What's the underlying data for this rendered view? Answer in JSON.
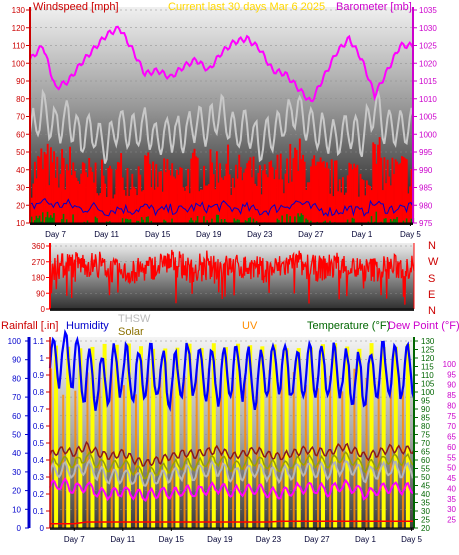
{
  "colors": {
    "windspeed": "#cc0000",
    "title": "#ffd700",
    "barometer": "#cc00cc",
    "direction": "#ff0000",
    "rainfall": "#cc0000",
    "humidity": "#0000cc",
    "thsw": "#bbbbbb",
    "solar": "#8b7000",
    "uv": "#ff8c00",
    "temperature": "#006600",
    "dewpoint": "#cc00cc",
    "rain_axis": "#0000cc",
    "temp_axis": "#006600"
  },
  "header": {
    "windspeed_label": "Windspeed [mph]",
    "title": "Current last 30 days Mar 6 2025",
    "barometer_label": "Barometer [mb]"
  },
  "panel2": {
    "compass": [
      "N",
      "W",
      "S",
      "E",
      "N"
    ]
  },
  "panel3": {
    "rainfall_label": "Rainfall [.in]",
    "humidity_label": "Humidity",
    "thsw_label": "THSW",
    "solar_label": "Solar",
    "uv_label": "UV",
    "temperature_label": "Temperature (°F)",
    "dewpoint_label": "Dew Point (°F)"
  },
  "chart_data": [
    {
      "type": "line",
      "title": "Current last 30 days Mar 6 2025",
      "x_ticks": [
        "Day 7",
        "Day 11",
        "Day 15",
        "Day 19",
        "Day 23",
        "Day 27",
        "Day 1",
        "Day 5"
      ],
      "ylabel": "Windspeed [mph]",
      "ylim": [
        10,
        130
      ],
      "y_ticks": [
        10,
        20,
        30,
        40,
        50,
        60,
        70,
        80,
        90,
        100,
        110,
        120,
        130
      ],
      "y2label": "Barometer [mb]",
      "y2lim": [
        975,
        1035
      ],
      "y2_ticks": [
        975,
        980,
        985,
        990,
        995,
        1000,
        1005,
        1010,
        1015,
        1020,
        1025,
        1030,
        1035
      ],
      "series": [
        {
          "name": "Barometer [mb]",
          "axis": "right",
          "x_day": [
            0,
            1,
            2,
            3,
            4,
            5,
            6,
            7,
            8,
            9,
            10,
            11,
            12,
            13,
            14,
            15,
            16,
            17,
            18,
            19,
            20,
            21,
            22,
            23,
            24,
            25,
            26,
            27,
            28,
            29
          ],
          "values": [
            1021,
            1025,
            1013,
            1015,
            1020,
            1024,
            1028,
            1030,
            1024,
            1017,
            1018,
            1016,
            1019,
            1021,
            1018,
            1023,
            1026,
            1027,
            1024,
            1018,
            1017,
            1013,
            1009,
            1016,
            1023,
            1027,
            1021,
            1011,
            1018,
            1025
          ]
        },
        {
          "name": "Gust",
          "axis": "left",
          "x_day": [
            0,
            1,
            2,
            3,
            4,
            5,
            6,
            7,
            8,
            9,
            10,
            11,
            12,
            13,
            14,
            15,
            16,
            17,
            18,
            19,
            20,
            21,
            22,
            23,
            24,
            25,
            26,
            27,
            28,
            29
          ],
          "values": [
            58,
            72,
            62,
            68,
            56,
            60,
            52,
            64,
            58,
            62,
            54,
            60,
            56,
            66,
            62,
            72,
            58,
            64,
            52,
            60,
            66,
            72,
            62,
            58,
            56,
            62,
            54,
            76,
            60,
            62
          ]
        },
        {
          "name": "Windspeed",
          "axis": "left",
          "x_day": [
            0,
            1,
            2,
            3,
            4,
            5,
            6,
            7,
            8,
            9,
            10,
            11,
            12,
            13,
            14,
            15,
            16,
            17,
            18,
            19,
            20,
            21,
            22,
            23,
            24,
            25,
            26,
            27,
            28,
            29
          ],
          "values": [
            30,
            42,
            34,
            36,
            28,
            32,
            24,
            30,
            26,
            32,
            24,
            28,
            26,
            32,
            30,
            34,
            28,
            30,
            24,
            28,
            34,
            40,
            30,
            26,
            24,
            30,
            22,
            38,
            28,
            30
          ]
        }
      ]
    },
    {
      "type": "line",
      "ylabel": "Wind direction",
      "ylim": [
        0,
        360
      ],
      "y_ticks": [
        0,
        90,
        180,
        270,
        360
      ],
      "series": [
        {
          "name": "Wind direction",
          "x_day": [
            0,
            2,
            4,
            6,
            8,
            10,
            12,
            14,
            16,
            18,
            20,
            22,
            24,
            26,
            28,
            29
          ],
          "values": [
            230,
            260,
            250,
            200,
            230,
            270,
            210,
            240,
            240,
            220,
            260,
            230,
            250,
            220,
            240,
            240
          ]
        }
      ]
    },
    {
      "type": "line",
      "x_ticks": [
        "Day 7",
        "Day 11",
        "Day 15",
        "Day 19",
        "Day 23",
        "Day 27",
        "Day 1",
        "Day 5"
      ],
      "ylabel": "Rainfall [.in]",
      "ylim": [
        0,
        1.1
      ],
      "y_ticks": [
        0,
        0.1,
        0.2,
        0.3,
        0.4,
        0.5,
        0.6,
        0.7,
        0.8,
        0.9,
        1,
        1.1
      ],
      "ylabel_humidity": "Humidity",
      "hlim": [
        0,
        100
      ],
      "h_ticks": [
        0,
        10,
        20,
        30,
        40,
        50,
        60,
        70,
        80,
        90,
        100
      ],
      "y2label": "Temperature (°F)",
      "y2lim": [
        20,
        130
      ],
      "y2_ticks": [
        20,
        25,
        30,
        35,
        40,
        45,
        50,
        55,
        60,
        65,
        70,
        75,
        80,
        85,
        90,
        95,
        100,
        105,
        110,
        115,
        120,
        125,
        130
      ],
      "series": [
        {
          "name": "Humidity",
          "axis": "humidity",
          "x_day": [
            0,
            1,
            2,
            3,
            4,
            5,
            6,
            7,
            8,
            9,
            10,
            11,
            12,
            13,
            14,
            15,
            16,
            17,
            18,
            19,
            20,
            21,
            22,
            23,
            24,
            25,
            26,
            27,
            28,
            29
          ],
          "values": [
            85,
            92,
            88,
            80,
            78,
            82,
            84,
            80,
            86,
            82,
            78,
            84,
            86,
            82,
            80,
            85,
            83,
            79,
            84,
            86,
            82,
            84,
            85,
            83,
            84,
            80,
            78,
            84,
            85,
            83
          ]
        },
        {
          "name": "Temperature (°F)",
          "axis": "right",
          "x_day": [
            0,
            1,
            2,
            3,
            4,
            5,
            6,
            7,
            8,
            9,
            10,
            11,
            12,
            13,
            14,
            15,
            16,
            17,
            18,
            19,
            20,
            21,
            22,
            23,
            24,
            25,
            26,
            27,
            28,
            29
          ],
          "values": [
            63,
            66,
            64,
            68,
            64,
            62,
            64,
            60,
            58,
            60,
            62,
            64,
            63,
            65,
            66,
            62,
            64,
            66,
            63,
            62,
            64,
            66,
            65,
            64,
            68,
            66,
            62,
            64,
            67,
            66
          ]
        },
        {
          "name": "THSW",
          "axis": "right",
          "x_day": [
            0,
            1,
            2,
            3,
            4,
            5,
            6,
            7,
            8,
            9,
            10,
            11,
            12,
            13,
            14,
            15,
            16,
            17,
            18,
            19,
            20,
            21,
            22,
            23,
            24,
            25,
            26,
            27,
            28,
            29
          ],
          "values": [
            52,
            55,
            53,
            56,
            52,
            50,
            51,
            49,
            48,
            50,
            51,
            53,
            52,
            54,
            55,
            51,
            53,
            54,
            52,
            51,
            53,
            55,
            54,
            53,
            56,
            55,
            51,
            53,
            55,
            54
          ]
        },
        {
          "name": "Dew Point (°F)",
          "axis": "right",
          "x_day": [
            0,
            1,
            2,
            3,
            4,
            5,
            6,
            7,
            8,
            9,
            10,
            11,
            12,
            13,
            14,
            15,
            16,
            17,
            18,
            19,
            20,
            21,
            22,
            23,
            24,
            25,
            26,
            27,
            28,
            29
          ],
          "values": [
            44,
            46,
            43,
            45,
            41,
            40,
            42,
            40,
            39,
            41,
            40,
            42,
            41,
            43,
            44,
            41,
            42,
            43,
            41,
            40,
            42,
            44,
            43,
            42,
            45,
            44,
            40,
            42,
            44,
            43
          ]
        },
        {
          "name": "Rainfall [.in]",
          "axis": "rain",
          "x_day": [
            0,
            1,
            2,
            3,
            4,
            5,
            6,
            7,
            8,
            9,
            10,
            11,
            12,
            13,
            14,
            15,
            16,
            17,
            18,
            19,
            20,
            21,
            22,
            23,
            24,
            25,
            26,
            27,
            28,
            29
          ],
          "values": [
            0.05,
            0,
            0,
            0.02,
            0,
            0,
            0,
            0,
            0,
            0,
            0,
            0,
            0,
            0,
            0,
            0,
            0,
            0,
            0,
            0.01,
            0,
            0,
            0,
            0,
            0,
            0,
            0,
            0,
            0,
            0
          ]
        }
      ]
    }
  ]
}
